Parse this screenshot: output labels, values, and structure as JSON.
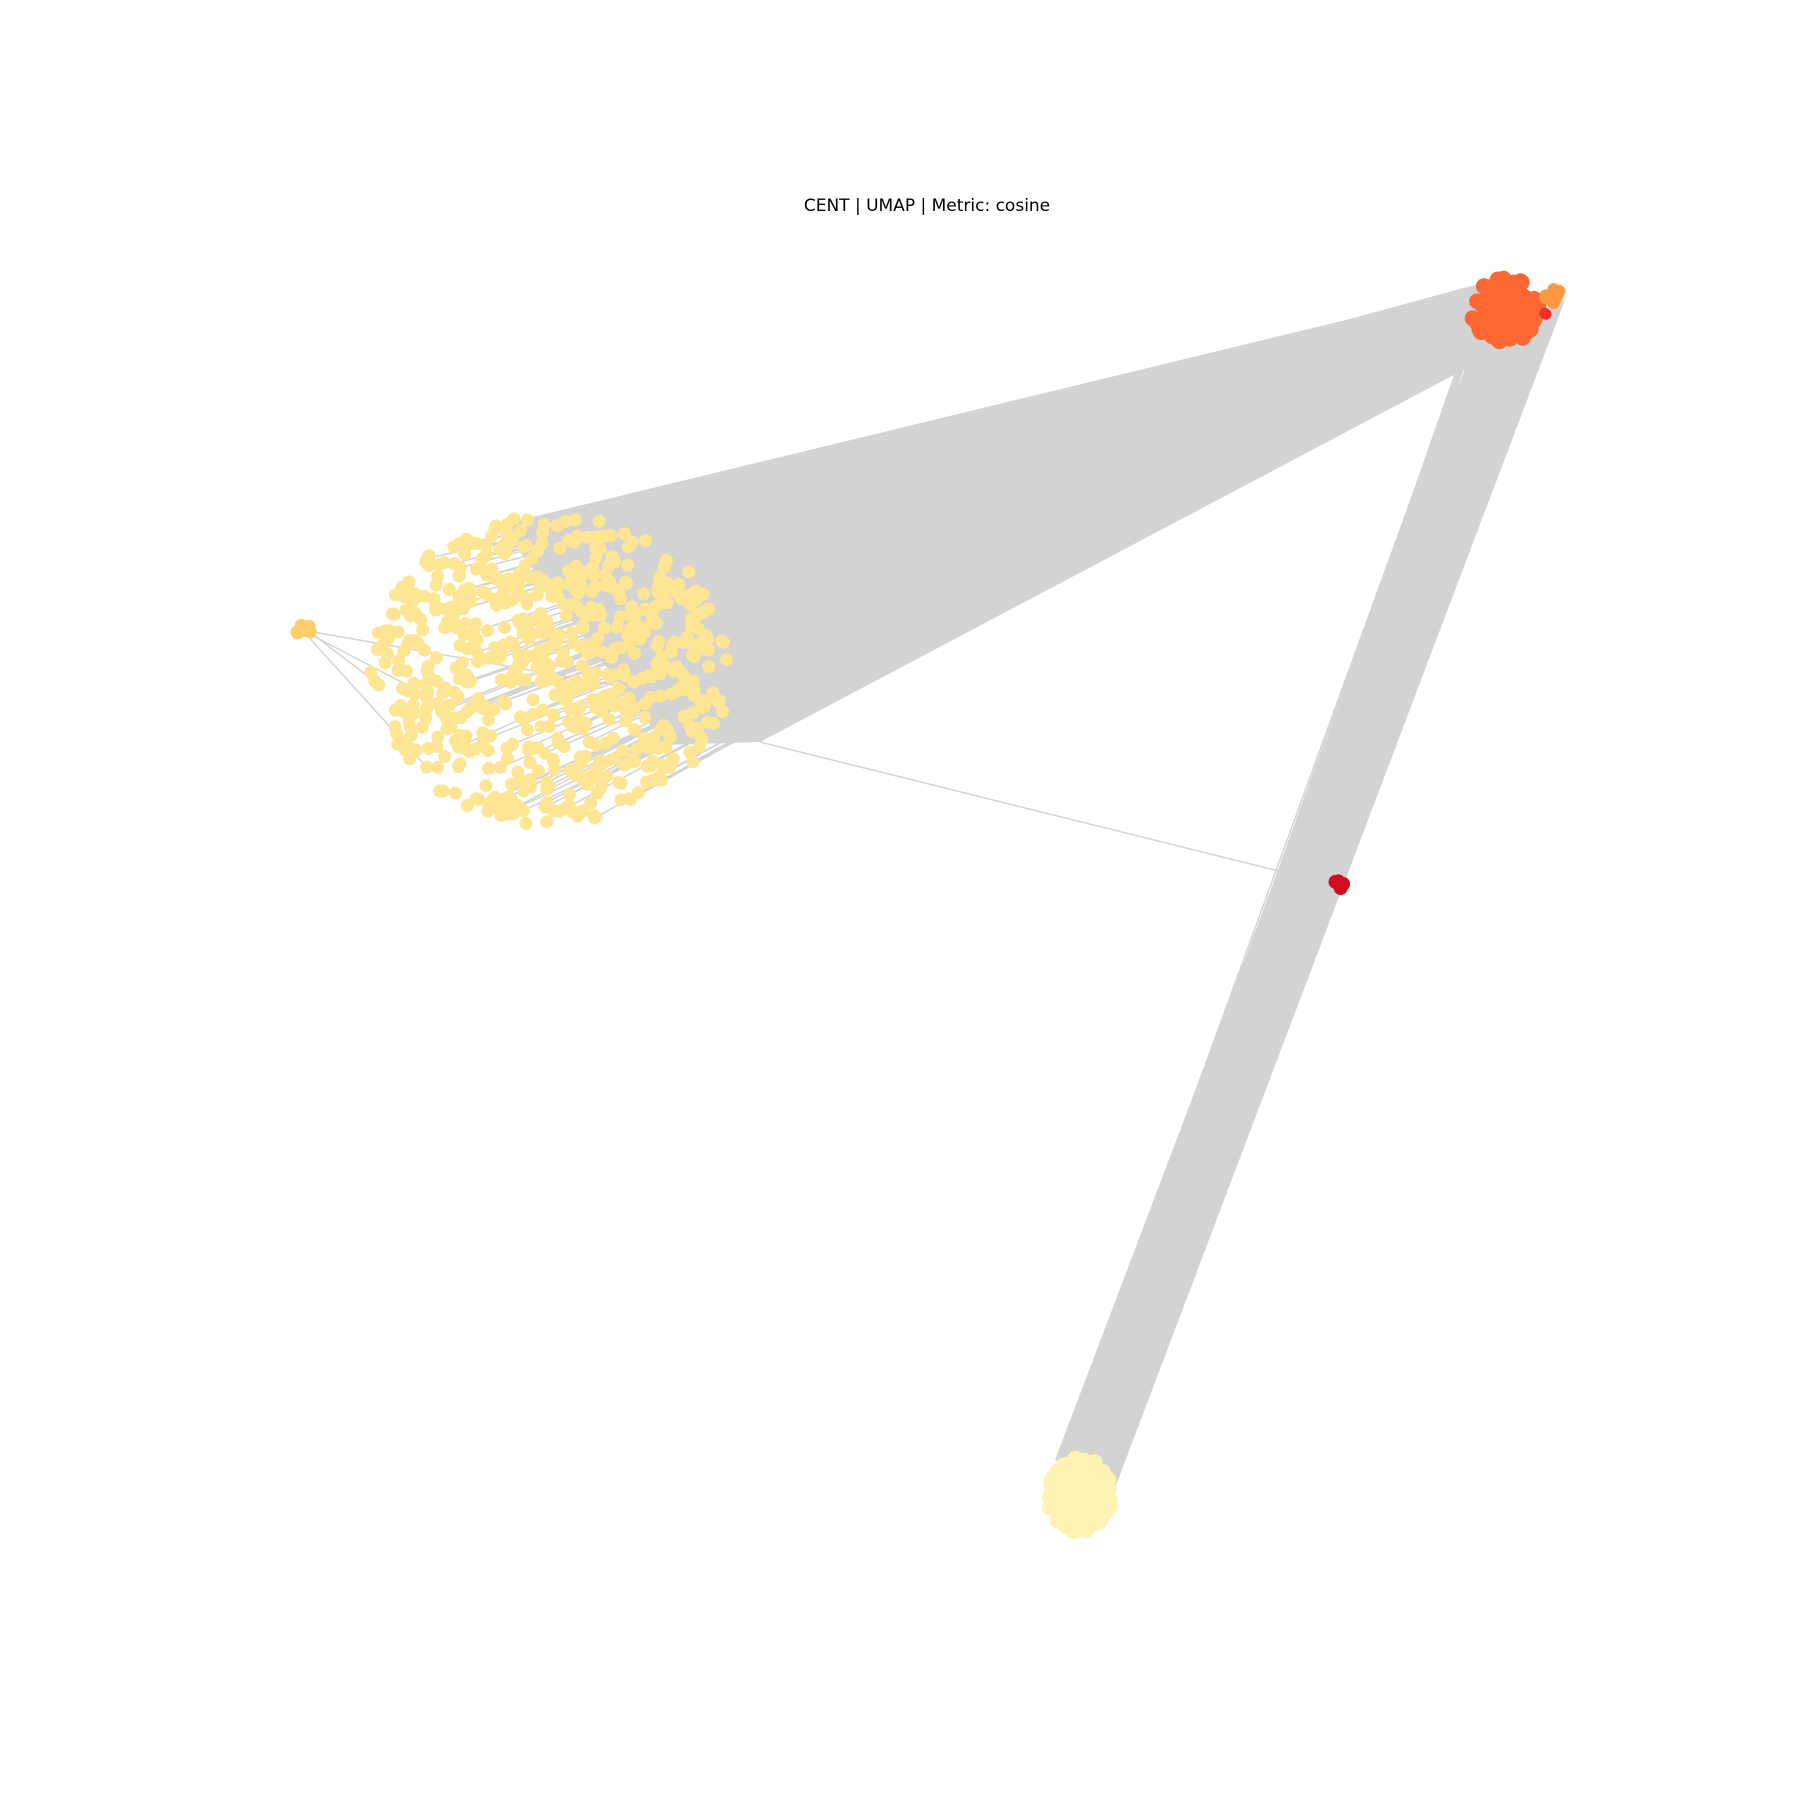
{
  "figure": {
    "title": "CENT | UMAP | Metric: cosine"
  },
  "graph": {
    "edge_color": "#d3d3d3",
    "clusters": [
      {
        "id": "large-pale-yellow",
        "color": "#fee594",
        "approx_nodes": 700
      },
      {
        "id": "top-right-orange",
        "color": "#fc6733",
        "approx_nodes": 120
      },
      {
        "id": "top-right-light-orange",
        "color": "#fd9840",
        "approx_nodes": 8
      },
      {
        "id": "top-right-red",
        "color": "#e8322a",
        "approx_nodes": 2
      },
      {
        "id": "left-small-gold",
        "color": "#fecd6a",
        "approx_nodes": 8
      },
      {
        "id": "middle-right-dark-red",
        "color": "#d00d21",
        "approx_nodes": 6
      },
      {
        "id": "bottom-cream",
        "color": "#fff3b3",
        "approx_nodes": 150
      }
    ]
  }
}
